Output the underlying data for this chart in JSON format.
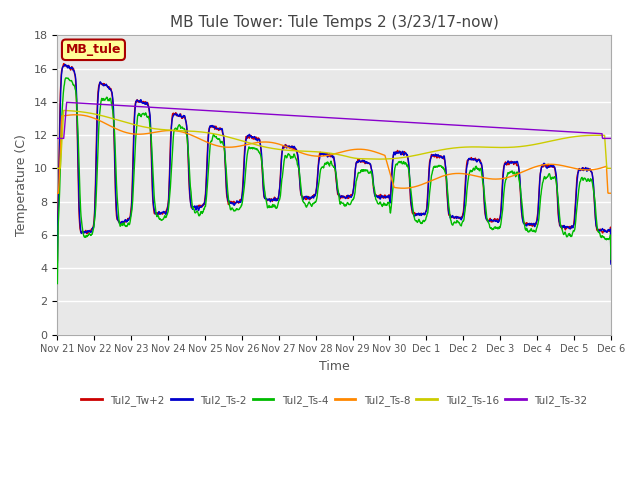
{
  "title": "MB Tule Tower: Tule Temps 2 (3/23/17-now)",
  "xlabel": "Time",
  "ylabel": "Temperature (C)",
  "ylim": [
    0,
    18
  ],
  "yticks": [
    0,
    2,
    4,
    6,
    8,
    10,
    12,
    14,
    16,
    18
  ],
  "background_color": "#ffffff",
  "plot_bg_color": "#e8e8e8",
  "grid_color": "#ffffff",
  "annotation_label": "MB_tule",
  "annotation_color": "#aa0000",
  "annotation_bg": "#ffff99",
  "series": [
    {
      "label": "Tul2_Tw+2",
      "color": "#cc0000"
    },
    {
      "label": "Tul2_Ts-2",
      "color": "#0000cc"
    },
    {
      "label": "Tul2_Ts-4",
      "color": "#00bb00"
    },
    {
      "label": "Tul2_Ts-8",
      "color": "#ff8800"
    },
    {
      "label": "Tul2_Ts-16",
      "color": "#cccc00"
    },
    {
      "label": "Tul2_Ts-32",
      "color": "#8800cc"
    }
  ],
  "xtick_labels": [
    "Nov 21",
    "Nov 22",
    "Nov 23",
    "Nov 24",
    "Nov 25",
    "Nov 26",
    "Nov 27",
    "Nov 28",
    "Nov 29",
    "Nov 30",
    "Dec 1",
    "Dec 2",
    "Dec 3",
    "Dec 4",
    "Dec 5",
    "Dec 6"
  ],
  "num_points": 1500
}
